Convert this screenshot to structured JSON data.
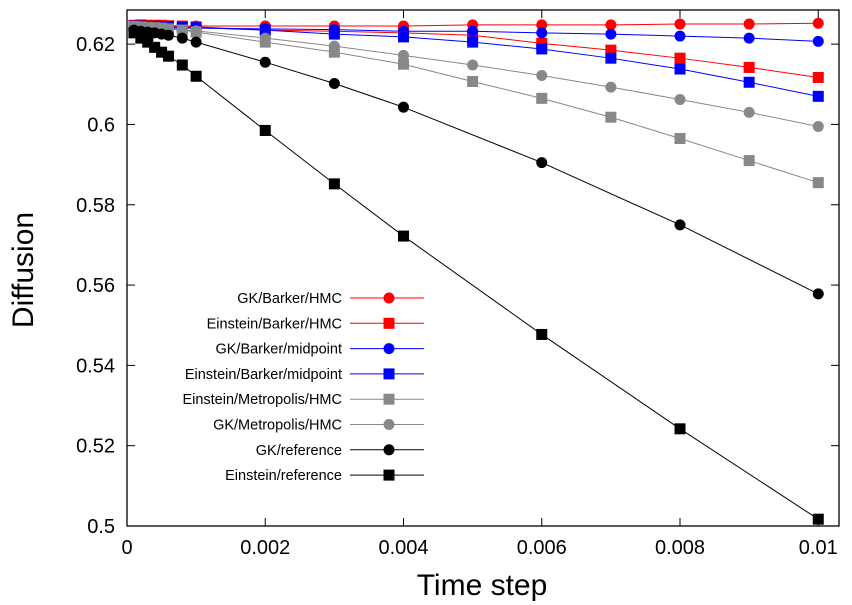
{
  "chart_data": {
    "type": "line",
    "xlabel": "Time step",
    "ylabel": "Diffusion",
    "xlim": [
      0,
      0.0103
    ],
    "ylim": [
      0.5,
      0.6285
    ],
    "x_ticks": [
      0,
      0.002,
      0.004,
      0.006,
      0.008,
      0.01
    ],
    "x_tick_labels": [
      "0",
      "0.002",
      "0.004",
      "0.006",
      "0.008",
      "0.01"
    ],
    "y_ticks": [
      0.5,
      0.52,
      0.54,
      0.56,
      0.58,
      0.6,
      0.62
    ],
    "y_tick_labels": [
      "0.5",
      "0.52",
      "0.54",
      "0.56",
      "0.58",
      "0.6",
      "0.62"
    ],
    "grid": false,
    "legend_position": "bottom-left",
    "series": [
      {
        "name": "GK/Barker/HMC",
        "color": "#ff0000",
        "marker": "circle",
        "x": [
          0.0001,
          0.0002,
          0.0003,
          0.0004,
          0.0005,
          0.0006,
          0.0008,
          0.001,
          0.002,
          0.003,
          0.004,
          0.005,
          0.006,
          0.007,
          0.008,
          0.009,
          0.01
        ],
        "y": [
          0.6245,
          0.6245,
          0.6245,
          0.6245,
          0.6245,
          0.6245,
          0.6245,
          0.6245,
          0.6245,
          0.6245,
          0.6245,
          0.6248,
          0.6248,
          0.6248,
          0.625,
          0.625,
          0.6252
        ]
      },
      {
        "name": "Einstein/Barker/HMC",
        "color": "#ff0000",
        "marker": "square",
        "x": [
          0.0001,
          0.0002,
          0.0003,
          0.0004,
          0.0005,
          0.0006,
          0.0008,
          0.001,
          0.002,
          0.003,
          0.004,
          0.005,
          0.006,
          0.007,
          0.008,
          0.009,
          0.01
        ],
        "y": [
          0.6247,
          0.6248,
          0.6247,
          0.6247,
          0.6247,
          0.6246,
          0.6245,
          0.6243,
          0.6235,
          0.6232,
          0.6228,
          0.6222,
          0.6202,
          0.6185,
          0.6165,
          0.6142,
          0.6117
        ]
      },
      {
        "name": "GK/Barker/midpoint",
        "color": "#0000ff",
        "marker": "circle",
        "x": [
          0.0001,
          0.0002,
          0.0003,
          0.0004,
          0.0005,
          0.0006,
          0.0008,
          0.001,
          0.002,
          0.003,
          0.004,
          0.005,
          0.006,
          0.007,
          0.008,
          0.009,
          0.01
        ],
        "y": [
          0.6242,
          0.6242,
          0.6241,
          0.6241,
          0.624,
          0.624,
          0.624,
          0.624,
          0.6238,
          0.6236,
          0.6232,
          0.6232,
          0.6228,
          0.6225,
          0.622,
          0.6215,
          0.6207
        ]
      },
      {
        "name": "Einstein/Barker/midpoint",
        "color": "#0000ff",
        "marker": "square",
        "x": [
          0.0001,
          0.0002,
          0.0003,
          0.0004,
          0.0005,
          0.0006,
          0.0008,
          0.001,
          0.002,
          0.003,
          0.004,
          0.005,
          0.006,
          0.007,
          0.008,
          0.009,
          0.01
        ],
        "y": [
          0.6245,
          0.6245,
          0.6244,
          0.6244,
          0.6243,
          0.6243,
          0.6242,
          0.6241,
          0.6235,
          0.6225,
          0.6218,
          0.6205,
          0.6188,
          0.6165,
          0.6138,
          0.6105,
          0.607
        ]
      },
      {
        "name": "Einstein/Metropolis/HMC",
        "color": "#888888",
        "marker": "square",
        "x": [
          0.0001,
          0.0002,
          0.0003,
          0.0004,
          0.0005,
          0.0006,
          0.0008,
          0.001,
          0.002,
          0.003,
          0.004,
          0.005,
          0.006,
          0.007,
          0.008,
          0.009,
          0.01
        ],
        "y": [
          0.6244,
          0.6243,
          0.6242,
          0.6241,
          0.624,
          0.6238,
          0.6235,
          0.623,
          0.6205,
          0.618,
          0.615,
          0.6107,
          0.6065,
          0.6018,
          0.5965,
          0.591,
          0.5855
        ]
      },
      {
        "name": "GK/Metropolis/HMC",
        "color": "#888888",
        "marker": "circle",
        "x": [
          0.0001,
          0.0002,
          0.0003,
          0.0004,
          0.0005,
          0.0006,
          0.0008,
          0.001,
          0.002,
          0.003,
          0.004,
          0.005,
          0.006,
          0.007,
          0.008,
          0.009,
          0.01
        ],
        "y": [
          0.6242,
          0.6242,
          0.6241,
          0.624,
          0.6239,
          0.6238,
          0.6235,
          0.6233,
          0.6215,
          0.6195,
          0.6172,
          0.6148,
          0.6122,
          0.6093,
          0.6062,
          0.603,
          0.5995
        ]
      },
      {
        "name": "GK/reference",
        "color": "#000000",
        "marker": "circle",
        "x": [
          0.0001,
          0.0002,
          0.0003,
          0.0004,
          0.0005,
          0.0006,
          0.0008,
          0.001,
          0.002,
          0.003,
          0.004,
          0.006,
          0.008,
          0.01
        ],
        "y": [
          0.6235,
          0.6232,
          0.623,
          0.6228,
          0.6225,
          0.6222,
          0.6215,
          0.6205,
          0.6155,
          0.6102,
          0.6043,
          0.5905,
          0.575,
          0.5578
        ]
      },
      {
        "name": "Einstein/reference",
        "color": "#000000",
        "marker": "square",
        "x": [
          0.0001,
          0.0002,
          0.0003,
          0.0004,
          0.0005,
          0.0006,
          0.0008,
          0.001,
          0.002,
          0.003,
          0.004,
          0.006,
          0.008,
          0.01
        ],
        "y": [
          0.6228,
          0.6215,
          0.6205,
          0.6192,
          0.618,
          0.617,
          0.6148,
          0.612,
          0.5985,
          0.5852,
          0.5722,
          0.5477,
          0.5242,
          0.5017
        ]
      }
    ]
  }
}
